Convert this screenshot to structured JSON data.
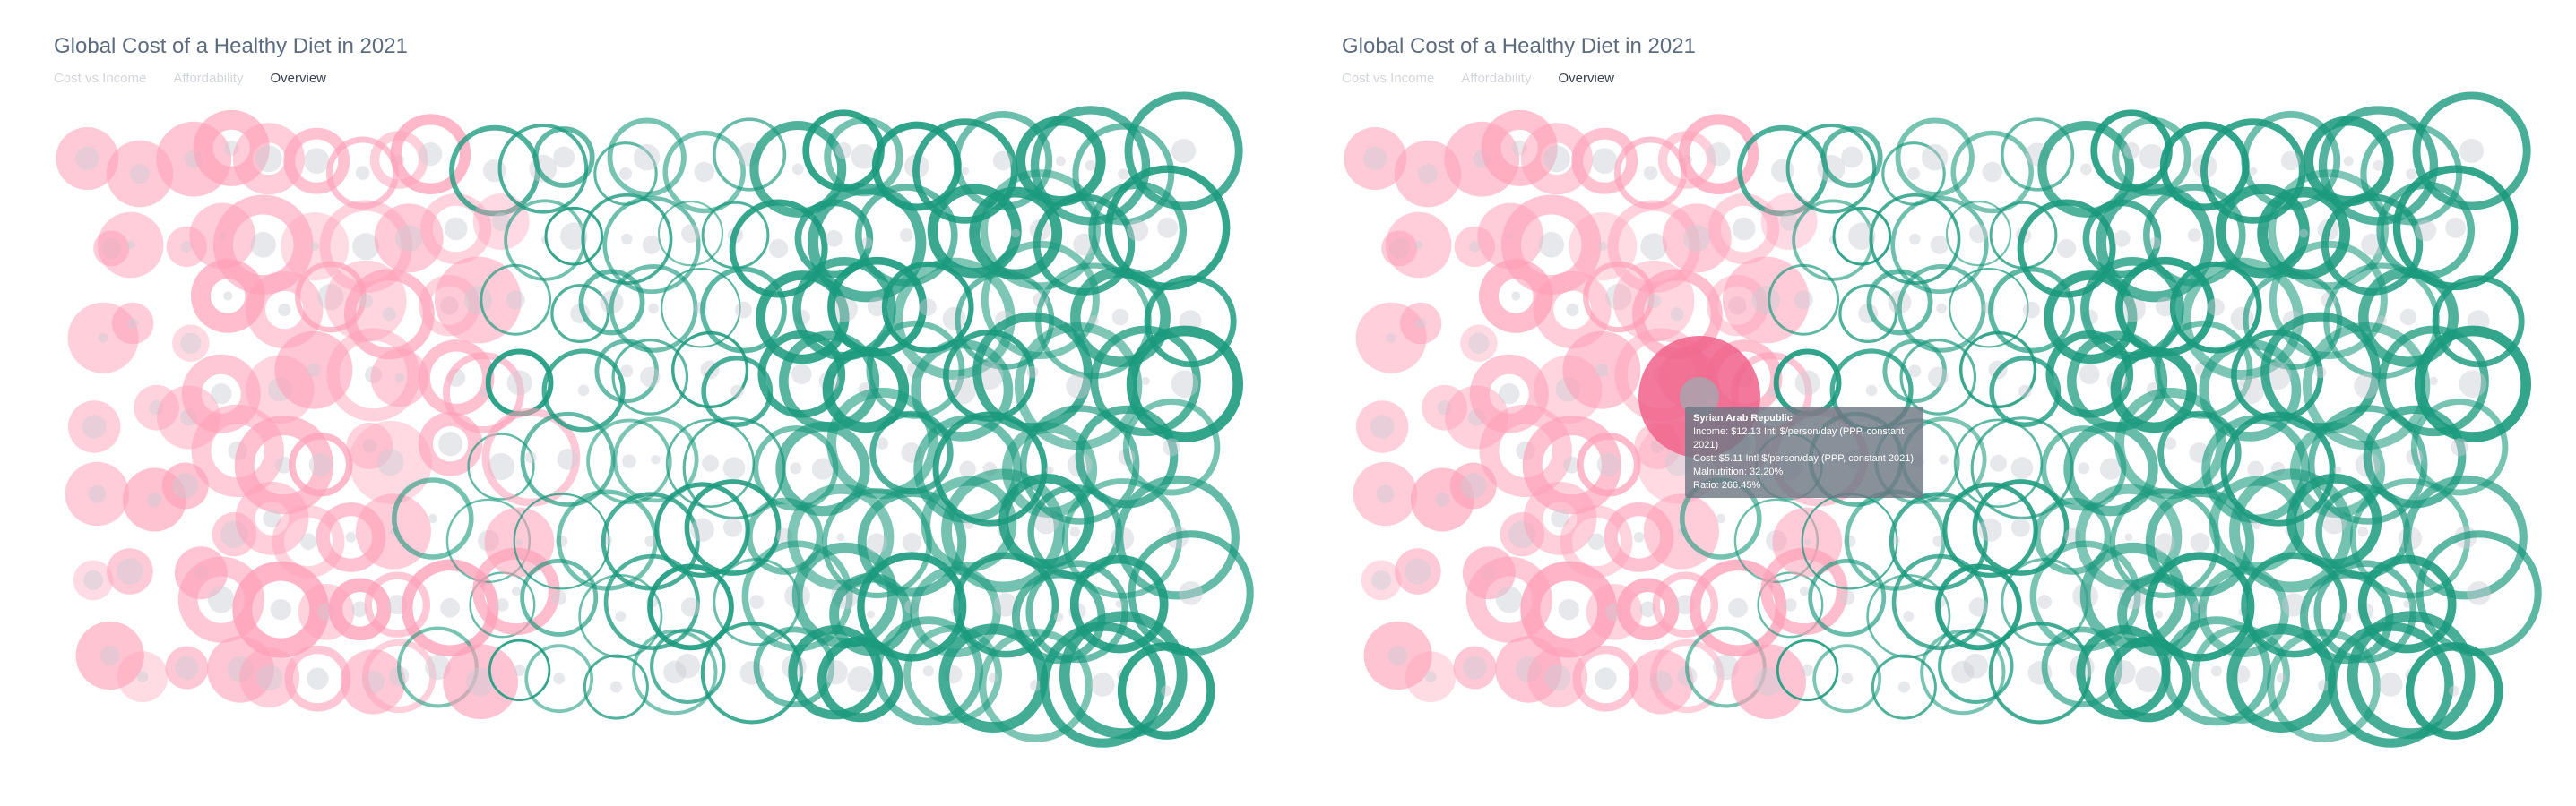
{
  "colors": {
    "low_ratio": "#ff9fb7",
    "low_ratio_hover": "#f06289",
    "high_ratio": "#1a9a7d",
    "dot": "#c9ccd4"
  },
  "panels": [
    {
      "title": "Global Cost of a Healthy Diet in 2021",
      "tabs": [
        {
          "label": "Cost vs Income",
          "active": false
        },
        {
          "label": "Affordability",
          "active": false
        },
        {
          "label": "Overview",
          "active": true
        }
      ],
      "tooltip": null
    },
    {
      "title": "Global Cost of a Healthy Diet in 2021",
      "tabs": [
        {
          "label": "Cost vs Income",
          "active": false
        },
        {
          "label": "Affordability",
          "active": false
        },
        {
          "label": "Overview",
          "active": true
        }
      ],
      "tooltip": {
        "country": "Syrian Arab Republic",
        "income_label": "Income: $12.13 Intl $/person/day (PPP, constant 2021)",
        "cost_label": "Cost: $5.11 Intl $/person/day (PPP, constant 2021)",
        "malnutrition_label": "Malnutrition: 32.20%",
        "ratio_label": "Ratio: 266.45%"
      }
    }
  ],
  "chart_data": {
    "type": "bubble-overview",
    "description_fields": [
      "income",
      "cost",
      "malnutrition",
      "ratio"
    ],
    "highlight_country": "Syrian Arab Republic",
    "highlight_values": {
      "income": 12.13,
      "cost": 5.11,
      "malnutrition": 32.2,
      "ratio": 266.45
    },
    "units": {
      "income": "Intl $/person/day (PPP, constant 2021)",
      "cost": "Intl $/person/day (PPP, constant 2021)",
      "malnutrition": "%",
      "ratio": "%"
    }
  }
}
